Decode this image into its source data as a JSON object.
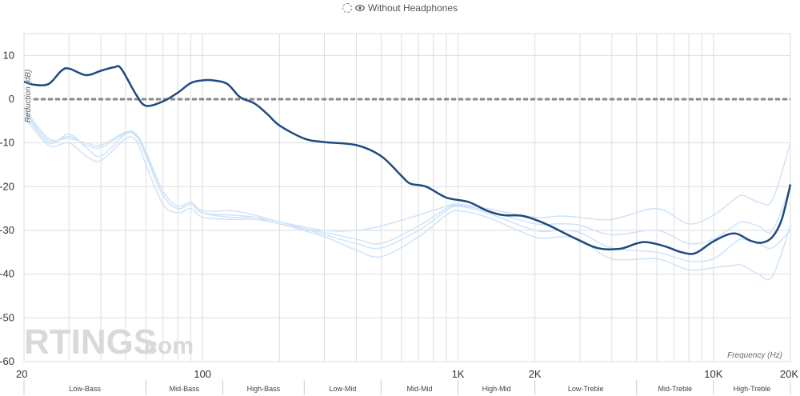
{
  "legend": {
    "label": "Without Headphones",
    "icon": "eye-icon"
  },
  "colors": {
    "main": "#1e4a80",
    "ref": "#cfe3f7",
    "grid": "#dddddd",
    "zero": "#888888"
  },
  "watermark": {
    "brand": "RTINGS",
    "suffix": ".com"
  },
  "chart_data": {
    "type": "line",
    "xlabel": "Frequency (Hz)",
    "ylabel": "Reduction (dB)",
    "x_scale": "log",
    "xlim": [
      20,
      20000
    ],
    "ylim": [
      -60,
      15
    ],
    "yticks": [
      10,
      0,
      -10,
      -20,
      -30,
      -40,
      -50,
      -60
    ],
    "xtick_labels": [
      {
        "value": 20,
        "label": "20"
      },
      {
        "value": 100,
        "label": "100"
      },
      {
        "value": 1000,
        "label": "1K"
      },
      {
        "value": 2000,
        "label": "2K"
      },
      {
        "value": 10000,
        "label": "10K"
      },
      {
        "value": 20000,
        "label": "20K"
      }
    ],
    "bands": [
      {
        "label": "Low-Bass",
        "from": 20,
        "to": 60
      },
      {
        "label": "Mid-Bass",
        "from": 60,
        "to": 120
      },
      {
        "label": "High-Bass",
        "from": 120,
        "to": 250
      },
      {
        "label": "Low-Mid",
        "from": 250,
        "to": 500
      },
      {
        "label": "Mid-Mid",
        "from": 500,
        "to": 1000
      },
      {
        "label": "High-Mid",
        "from": 1000,
        "to": 2000
      },
      {
        "label": "Low-Treble",
        "from": 2000,
        "to": 5000
      },
      {
        "label": "Mid-Treble",
        "from": 5000,
        "to": 10000
      },
      {
        "label": "High-Treble",
        "from": 10000,
        "to": 20000
      }
    ],
    "series": [
      {
        "role": "main",
        "points": [
          [
            20,
            4
          ],
          [
            22,
            3.3
          ],
          [
            25,
            3.5
          ],
          [
            28,
            6.5
          ],
          [
            30,
            7
          ],
          [
            35,
            5.5
          ],
          [
            40,
            6.5
          ],
          [
            45,
            7.3
          ],
          [
            48,
            7
          ],
          [
            55,
            1
          ],
          [
            60,
            -1.5
          ],
          [
            70,
            -0.5
          ],
          [
            80,
            1.5
          ],
          [
            90,
            3.7
          ],
          [
            100,
            4.3
          ],
          [
            110,
            4.3
          ],
          [
            125,
            3.5
          ],
          [
            140,
            0.5
          ],
          [
            160,
            -1
          ],
          [
            180,
            -3.5
          ],
          [
            200,
            -6
          ],
          [
            250,
            -9
          ],
          [
            300,
            -9.8
          ],
          [
            400,
            -10.5
          ],
          [
            500,
            -13
          ],
          [
            600,
            -17.5
          ],
          [
            650,
            -19.3
          ],
          [
            750,
            -20
          ],
          [
            900,
            -22.5
          ],
          [
            1100,
            -23.5
          ],
          [
            1300,
            -25.5
          ],
          [
            1500,
            -26.5
          ],
          [
            1800,
            -26.7
          ],
          [
            2200,
            -28.5
          ],
          [
            2800,
            -31.5
          ],
          [
            3500,
            -34
          ],
          [
            4300,
            -34.2
          ],
          [
            5000,
            -33
          ],
          [
            5500,
            -32.7
          ],
          [
            6500,
            -33.7
          ],
          [
            7500,
            -35
          ],
          [
            8500,
            -35.2
          ],
          [
            10000,
            -32.5
          ],
          [
            12000,
            -30.7
          ],
          [
            14000,
            -32.4
          ],
          [
            15500,
            -32.8
          ],
          [
            17000,
            -31.5
          ],
          [
            18500,
            -27.5
          ],
          [
            20000,
            -19.5
          ]
        ]
      },
      {
        "role": "reference",
        "points": [
          [
            20,
            -2
          ],
          [
            25,
            -9
          ],
          [
            30,
            -9
          ],
          [
            35,
            -10
          ],
          [
            40,
            -10.5
          ],
          [
            50,
            -7.5
          ],
          [
            55,
            -8
          ],
          [
            60,
            -12
          ],
          [
            70,
            -21
          ],
          [
            80,
            -24.5
          ],
          [
            90,
            -23.5
          ],
          [
            100,
            -25.5
          ],
          [
            130,
            -25.5
          ],
          [
            160,
            -26.5
          ],
          [
            200,
            -28
          ],
          [
            300,
            -30
          ],
          [
            400,
            -30
          ],
          [
            500,
            -29
          ],
          [
            700,
            -26.5
          ],
          [
            900,
            -24.5
          ],
          [
            1000,
            -24
          ],
          [
            1300,
            -25
          ],
          [
            2000,
            -27
          ],
          [
            2500,
            -26.7
          ],
          [
            3000,
            -27
          ],
          [
            4000,
            -27.5
          ],
          [
            6000,
            -25
          ],
          [
            8000,
            -28.5
          ],
          [
            10000,
            -26.5
          ],
          [
            12000,
            -23
          ],
          [
            13000,
            -22
          ],
          [
            15000,
            -23.5
          ],
          [
            17000,
            -23
          ],
          [
            20000,
            -10
          ]
        ]
      },
      {
        "role": "reference",
        "points": [
          [
            20,
            -3
          ],
          [
            25,
            -10
          ],
          [
            30,
            -8
          ],
          [
            35,
            -11
          ],
          [
            40,
            -13
          ],
          [
            50,
            -8
          ],
          [
            55,
            -8.5
          ],
          [
            60,
            -13
          ],
          [
            70,
            -22
          ],
          [
            80,
            -25
          ],
          [
            90,
            -24
          ],
          [
            100,
            -26
          ],
          [
            130,
            -27
          ],
          [
            160,
            -27
          ],
          [
            200,
            -28
          ],
          [
            300,
            -31
          ],
          [
            400,
            -33
          ],
          [
            500,
            -34
          ],
          [
            700,
            -30
          ],
          [
            900,
            -25.5
          ],
          [
            1000,
            -24.5
          ],
          [
            1300,
            -26
          ],
          [
            2000,
            -30
          ],
          [
            2500,
            -30
          ],
          [
            3000,
            -30.5
          ],
          [
            4000,
            -34
          ],
          [
            6000,
            -35
          ],
          [
            8000,
            -37
          ],
          [
            10000,
            -36.5
          ],
          [
            12000,
            -33
          ],
          [
            13000,
            -32
          ],
          [
            15000,
            -33
          ],
          [
            17000,
            -34
          ],
          [
            20000,
            -30
          ]
        ]
      },
      {
        "role": "reference",
        "points": [
          [
            20,
            -4
          ],
          [
            25,
            -10.5
          ],
          [
            30,
            -10
          ],
          [
            35,
            -13
          ],
          [
            40,
            -14
          ],
          [
            50,
            -9
          ],
          [
            55,
            -9.5
          ],
          [
            60,
            -15
          ],
          [
            70,
            -24
          ],
          [
            80,
            -26
          ],
          [
            90,
            -25
          ],
          [
            100,
            -27
          ],
          [
            130,
            -27.5
          ],
          [
            160,
            -27.5
          ],
          [
            200,
            -28.5
          ],
          [
            300,
            -31.5
          ],
          [
            400,
            -34.5
          ],
          [
            500,
            -36
          ],
          [
            700,
            -31.5
          ],
          [
            900,
            -26.5
          ],
          [
            1000,
            -25.5
          ],
          [
            1300,
            -27
          ],
          [
            2000,
            -31.5
          ],
          [
            2500,
            -31.5
          ],
          [
            3000,
            -32
          ],
          [
            4000,
            -36.5
          ],
          [
            6000,
            -36.5
          ],
          [
            8000,
            -39
          ],
          [
            10000,
            -38.5
          ],
          [
            12000,
            -38
          ],
          [
            13000,
            -38
          ],
          [
            15000,
            -40
          ],
          [
            17000,
            -40.5
          ],
          [
            20000,
            -29
          ]
        ]
      },
      {
        "role": "reference",
        "points": [
          [
            20,
            -2.5
          ],
          [
            25,
            -9.5
          ],
          [
            30,
            -8.5
          ],
          [
            35,
            -10.5
          ],
          [
            40,
            -11
          ],
          [
            50,
            -7.8
          ],
          [
            55,
            -8.2
          ],
          [
            60,
            -12.5
          ],
          [
            70,
            -22
          ],
          [
            80,
            -25
          ],
          [
            90,
            -24
          ],
          [
            100,
            -26
          ],
          [
            130,
            -26.5
          ],
          [
            160,
            -27
          ],
          [
            200,
            -28.5
          ],
          [
            300,
            -30.5
          ],
          [
            400,
            -32
          ],
          [
            500,
            -33
          ],
          [
            700,
            -29
          ],
          [
            900,
            -25
          ],
          [
            1000,
            -24.3
          ],
          [
            1300,
            -25.5
          ],
          [
            2000,
            -28.5
          ],
          [
            2500,
            -28.5
          ],
          [
            3000,
            -28.8
          ],
          [
            4000,
            -31
          ],
          [
            6000,
            -30
          ],
          [
            8000,
            -33
          ],
          [
            10000,
            -32
          ],
          [
            12000,
            -29
          ],
          [
            13000,
            -28
          ],
          [
            15000,
            -29
          ],
          [
            17000,
            -30
          ],
          [
            20000,
            -20
          ]
        ]
      }
    ]
  }
}
